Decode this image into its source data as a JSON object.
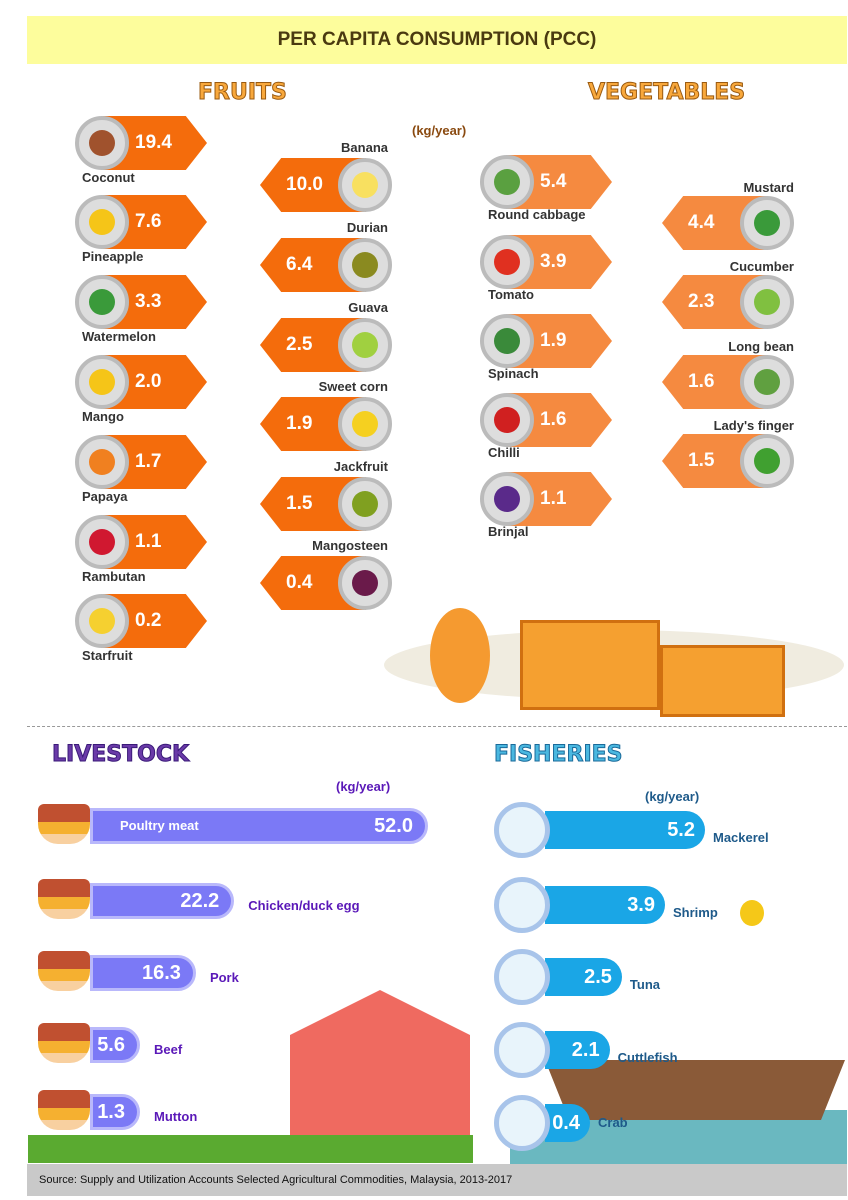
{
  "title": "PER CAPITA CONSUMPTION (PCC)",
  "footer": "Source:  Supply and Utilization Accounts Selected Agricultural Commodities, Malaysia, 2013-2017",
  "chart_data": [
    {
      "type": "table",
      "title": "FRUITS",
      "unit": "(kg/year)",
      "items": [
        {
          "name": "Coconut",
          "value": 19.4,
          "color": "#a0522d"
        },
        {
          "name": "Pineapple",
          "value": 7.6,
          "color": "#f5c518"
        },
        {
          "name": "Watermelon",
          "value": 3.3,
          "color": "#3a9a3a"
        },
        {
          "name": "Mango",
          "value": 2.0,
          "color": "#f5c518"
        },
        {
          "name": "Papaya",
          "value": 1.7,
          "color": "#f08020"
        },
        {
          "name": "Rambutan",
          "value": 1.1,
          "color": "#d01830"
        },
        {
          "name": "Starfruit",
          "value": 0.2,
          "color": "#f5d030"
        },
        {
          "name": "Banana",
          "value": 10.0,
          "color": "#f8e060"
        },
        {
          "name": "Durian",
          "value": 6.4,
          "color": "#8a8a20"
        },
        {
          "name": "Guava",
          "value": 2.5,
          "color": "#a0d040"
        },
        {
          "name": "Sweet corn",
          "value": 1.9,
          "color": "#f5d020"
        },
        {
          "name": "Jackfruit",
          "value": 1.5,
          "color": "#80a020"
        },
        {
          "name": "Mangosteen",
          "value": 0.4,
          "color": "#6a1a4a"
        }
      ]
    },
    {
      "type": "table",
      "title": "VEGETABLES",
      "items": [
        {
          "name": "Round cabbage",
          "value": 5.4,
          "color": "#5aa040"
        },
        {
          "name": "Tomato",
          "value": 3.9,
          "color": "#e03020"
        },
        {
          "name": "Spinach",
          "value": 1.9,
          "color": "#3a8a3a"
        },
        {
          "name": "Chilli",
          "value": 1.6,
          "color": "#d02020"
        },
        {
          "name": "Brinjal",
          "value": 1.1,
          "color": "#5a2a8a"
        },
        {
          "name": "Mustard",
          "value": 4.4,
          "color": "#3a9a3a"
        },
        {
          "name": "Cucumber",
          "value": 2.3,
          "color": "#80c040"
        },
        {
          "name": "Long bean",
          "value": 1.6,
          "color": "#60a040"
        },
        {
          "name": "Lady's finger",
          "value": 1.5,
          "color": "#40a030"
        }
      ]
    },
    {
      "type": "bar",
      "title": "LIVESTOCK",
      "unit": "(kg/year)",
      "items": [
        {
          "name": "Poultry meat",
          "value": 52.0
        },
        {
          "name": "Chicken/duck egg",
          "value": 22.2
        },
        {
          "name": "Pork",
          "value": 16.3
        },
        {
          "name": "Beef",
          "value": 5.6
        },
        {
          "name": "Mutton",
          "value": 1.3
        }
      ]
    },
    {
      "type": "bar",
      "title": "FISHERIES",
      "unit": "(kg/year)",
      "items": [
        {
          "name": "Mackerel",
          "value": 5.2
        },
        {
          "name": "Shrimp",
          "value": 3.9
        },
        {
          "name": "Tuna",
          "value": 2.5
        },
        {
          "name": "Cuttlefish",
          "value": 2.1
        },
        {
          "name": "Crab",
          "value": 0.4
        }
      ]
    }
  ]
}
